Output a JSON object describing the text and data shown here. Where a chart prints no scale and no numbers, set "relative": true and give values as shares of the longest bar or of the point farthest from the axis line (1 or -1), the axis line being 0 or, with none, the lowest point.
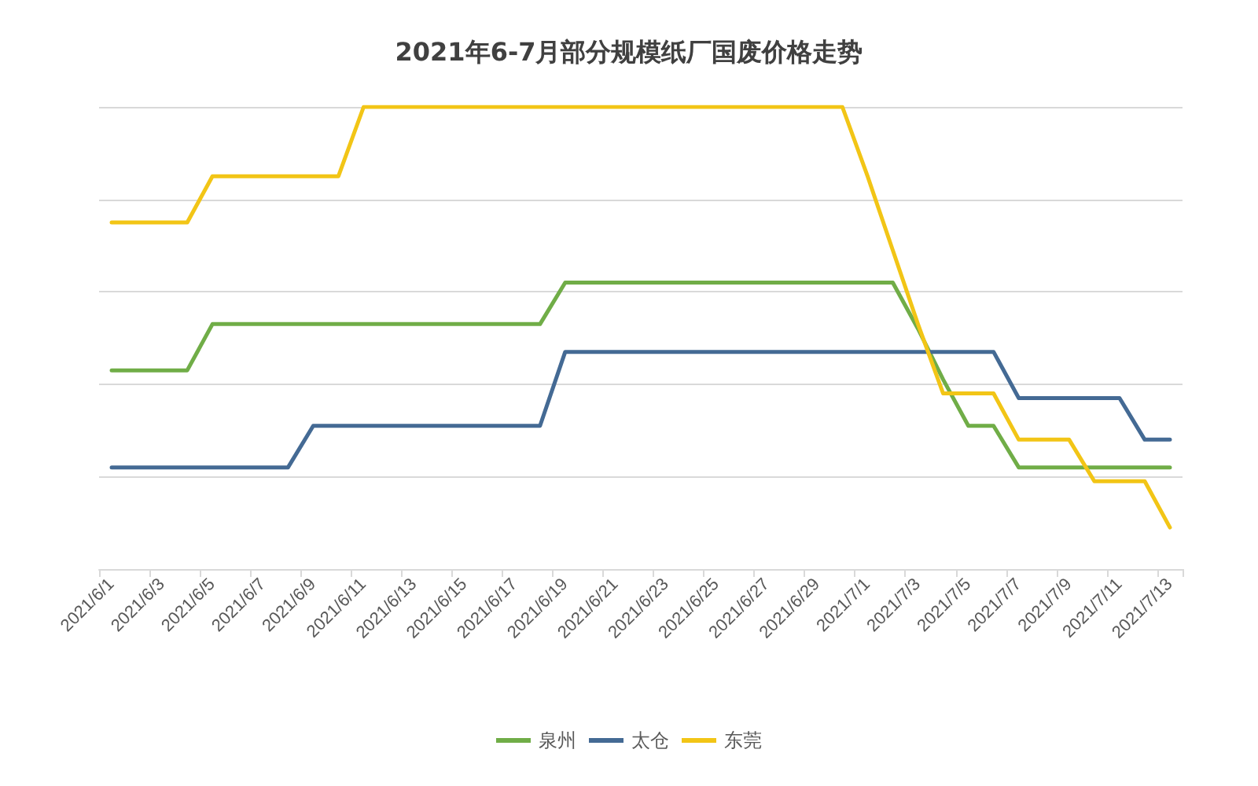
{
  "chart_data": {
    "type": "line",
    "title": "2021年6-7月部分规模纸厂国废价格走势",
    "relative": true,
    "categories": [
      "2021/6/1",
      null,
      "2021/6/3",
      null,
      "2021/6/5",
      null,
      "2021/6/7",
      null,
      "2021/6/9",
      null,
      "2021/6/11",
      null,
      "2021/6/13",
      null,
      "2021/6/15",
      null,
      "2021/6/17",
      null,
      "2021/6/19",
      null,
      "2021/6/21",
      null,
      "2021/6/23",
      null,
      "2021/6/25",
      null,
      "2021/6/27",
      null,
      "2021/6/29",
      null,
      "2021/7/1",
      null,
      "2021/7/3",
      null,
      "2021/7/5",
      null,
      "2021/7/7",
      null,
      "2021/7/9",
      null,
      "2021/7/11",
      null,
      "2021/7/13"
    ],
    "series": [
      {
        "name": "泉州",
        "color": "#70ad47",
        "values": [
          0.43,
          0.43,
          0.43,
          0.43,
          0.53,
          0.53,
          0.53,
          0.53,
          0.53,
          0.53,
          0.53,
          0.53,
          0.53,
          0.53,
          0.53,
          0.53,
          0.53,
          0.53,
          0.62,
          0.62,
          0.62,
          0.62,
          0.62,
          0.62,
          0.62,
          0.62,
          0.62,
          0.62,
          0.62,
          0.62,
          0.62,
          0.62,
          0.52,
          0.41,
          0.31,
          0.31,
          0.22,
          0.22,
          0.22,
          0.22,
          0.22,
          0.22,
          0.22
        ]
      },
      {
        "name": "太仓",
        "color": "#446a94",
        "values": [
          0.22,
          0.22,
          0.22,
          0.22,
          0.22,
          0.22,
          0.22,
          0.22,
          0.31,
          0.31,
          0.31,
          0.31,
          0.31,
          0.31,
          0.31,
          0.31,
          0.31,
          0.31,
          0.47,
          0.47,
          0.47,
          0.47,
          0.47,
          0.47,
          0.47,
          0.47,
          0.47,
          0.47,
          0.47,
          0.47,
          0.47,
          0.47,
          0.47,
          0.47,
          0.47,
          0.47,
          0.37,
          0.37,
          0.37,
          0.37,
          0.37,
          0.28,
          0.28
        ]
      },
      {
        "name": "东莞",
        "color": "#f2c516",
        "values": [
          0.75,
          0.75,
          0.75,
          0.75,
          0.85,
          0.85,
          0.85,
          0.85,
          0.85,
          0.85,
          1,
          1,
          1,
          1,
          1,
          1,
          1,
          1,
          1,
          1,
          1,
          1,
          1,
          1,
          1,
          1,
          1,
          1,
          1,
          1,
          0.85,
          0.69,
          0.53,
          0.38,
          0.38,
          0.38,
          0.28,
          0.28,
          0.28,
          0.19,
          0.19,
          0.19,
          0.09
        ]
      }
    ],
    "grid": "y",
    "legend": "bottom",
    "marker": "none",
    "line_style": "solid",
    "tick_labels": "x"
  }
}
